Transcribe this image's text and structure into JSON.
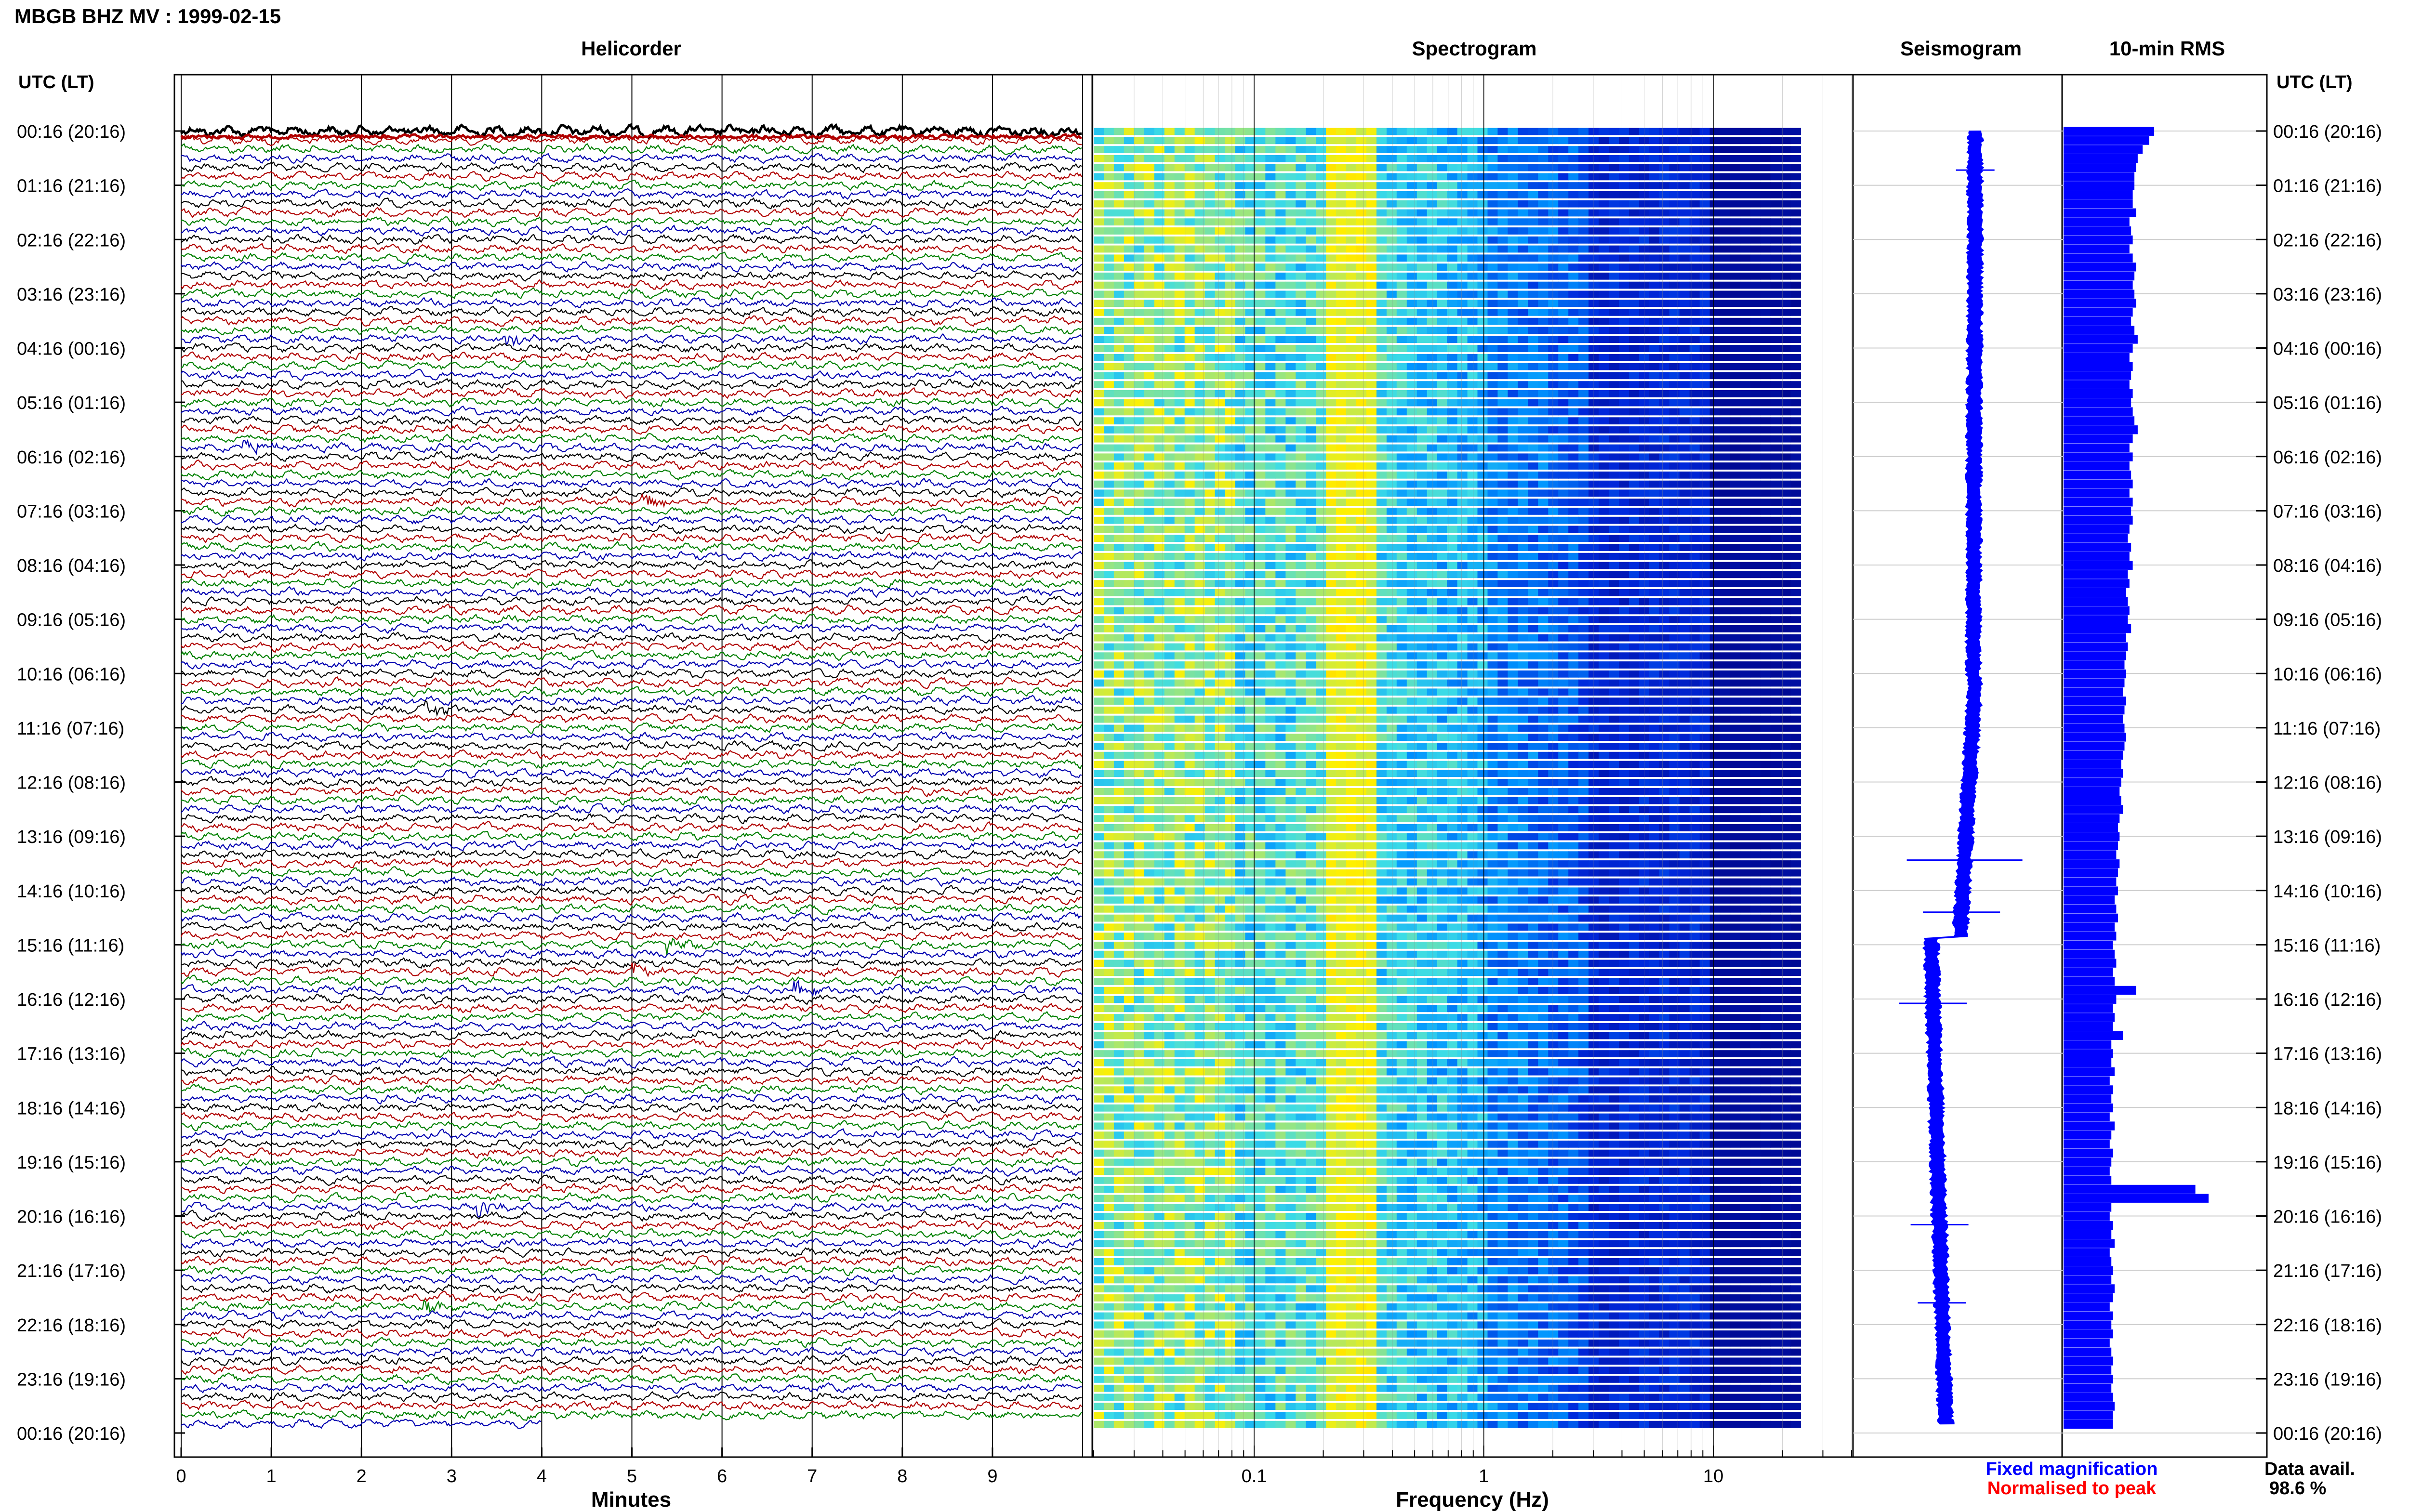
{
  "header": {
    "title": "MBGB BHZ MV : 1999-02-15"
  },
  "panels": {
    "helicorder": "Helicorder",
    "spectrogram": "Spectrogram",
    "seismogram": "Seismogram",
    "rms": "10-min RMS"
  },
  "axes": {
    "utc_label_left": "UTC (LT)",
    "utc_label_right": "UTC (LT)",
    "x_minutes_label": "Minutes",
    "x_frequency_label": "Frequency (Hz)"
  },
  "time_labels": [
    "00:16 (20:16)",
    "01:16 (21:16)",
    "02:16 (22:16)",
    "03:16 (23:16)",
    "04:16 (00:16)",
    "05:16 (01:16)",
    "06:16 (02:16)",
    "07:16 (03:16)",
    "08:16 (04:16)",
    "09:16 (05:16)",
    "10:16 (06:16)",
    "11:16 (07:16)",
    "12:16 (08:16)",
    "13:16 (09:16)",
    "14:16 (10:16)",
    "15:16 (11:16)",
    "16:16 (12:16)",
    "17:16 (13:16)",
    "18:16 (14:16)",
    "19:16 (15:16)",
    "20:16 (16:16)",
    "21:16 (17:16)",
    "22:16 (18:16)",
    "23:16 (19:16)",
    "00:16 (20:16)"
  ],
  "minute_ticks": [
    "0",
    "1",
    "2",
    "3",
    "4",
    "5",
    "6",
    "7",
    "8",
    "9"
  ],
  "frequency_ticks": [
    "0.1",
    "1",
    "10"
  ],
  "legend": {
    "fixed": "Fixed magnification",
    "normalised": "Normalised to peak",
    "data_avail_label": "Data avail.",
    "data_avail_value": "98.6 %"
  },
  "colors": {
    "trace_cycle": [
      "#000000",
      "#b00000",
      "#008000",
      "#0000b0"
    ],
    "rms_bar": "#0000ff",
    "seismogram": "#0000ff",
    "legend_fixed": "#0000ff",
    "legend_normalised": "#ff0000",
    "spectrogram_low": "#00007f",
    "spectrogram_high": "#ffff00"
  },
  "chart_data": [
    {
      "type": "line",
      "title": "Helicorder",
      "xlabel": "Minutes",
      "xlim": [
        0,
        10
      ],
      "rows_per_hour": 6,
      "row_minutes": 10,
      "traces": 144,
      "events": [
        {
          "row": 23,
          "minute": 3.6,
          "color": "#0000b0"
        },
        {
          "row": 35,
          "minute": 0.7,
          "color": "#000000"
        },
        {
          "row": 41,
          "minute": 5.1,
          "color": "#000000"
        },
        {
          "row": 64,
          "minute": 2.7,
          "color": "#000000"
        },
        {
          "row": 90,
          "minute": 5.4,
          "color": "#008000"
        },
        {
          "row": 93,
          "minute": 5.0,
          "color": "#008000"
        },
        {
          "row": 95,
          "minute": 6.8,
          "color": "#0000b0"
        },
        {
          "row": 119,
          "minute": 3.3,
          "color": "#008000"
        },
        {
          "row": 130,
          "minute": 2.7,
          "color": "#0000b0"
        }
      ]
    },
    {
      "type": "heatmap",
      "title": "Spectrogram",
      "xlabel": "Frequency (Hz)",
      "x_scale": "log",
      "xlim": [
        0.02,
        40
      ],
      "peak_band_hz": [
        0.2,
        0.35
      ]
    },
    {
      "type": "line",
      "title": "Seismogram",
      "description_none": ""
    },
    {
      "type": "bar",
      "title": "10-min RMS",
      "orientation": "horizontal",
      "values": [
        0.55,
        0.52,
        0.48,
        0.45,
        0.44,
        0.43,
        0.43,
        0.42,
        0.42,
        0.44,
        0.4,
        0.41,
        0.42,
        0.4,
        0.42,
        0.44,
        0.43,
        0.42,
        0.43,
        0.44,
        0.42,
        0.41,
        0.43,
        0.45,
        0.42,
        0.4,
        0.42,
        0.41,
        0.4,
        0.42,
        0.41,
        0.42,
        0.43,
        0.45,
        0.42,
        0.4,
        0.42,
        0.4,
        0.41,
        0.42,
        0.4,
        0.42,
        0.41,
        0.42,
        0.4,
        0.39,
        0.41,
        0.4,
        0.42,
        0.39,
        0.4,
        0.38,
        0.39,
        0.4,
        0.39,
        0.41,
        0.38,
        0.39,
        0.38,
        0.37,
        0.38,
        0.37,
        0.36,
        0.38,
        0.37,
        0.36,
        0.37,
        0.38,
        0.37,
        0.36,
        0.35,
        0.36,
        0.35,
        0.34,
        0.35,
        0.36,
        0.34,
        0.33,
        0.34,
        0.33,
        0.32,
        0.34,
        0.33,
        0.32,
        0.33,
        0.31,
        0.32,
        0.33,
        0.31,
        0.32,
        0.3,
        0.31,
        0.32,
        0.3,
        0.31,
        0.44,
        0.32,
        0.3,
        0.31,
        0.3,
        0.36,
        0.29,
        0.3,
        0.29,
        0.31,
        0.28,
        0.3,
        0.29,
        0.3,
        0.28,
        0.31,
        0.29,
        0.28,
        0.3,
        0.29,
        0.28,
        0.29,
        0.8,
        0.88,
        0.29,
        0.28,
        0.3,
        0.29,
        0.31,
        0.28,
        0.29,
        0.3,
        0.29,
        0.31,
        0.3,
        0.28,
        0.3,
        0.29,
        0.3,
        0.28,
        0.29,
        0.3,
        0.29,
        0.3,
        0.29,
        0.3,
        0.31,
        0.3,
        0.3
      ]
    }
  ]
}
